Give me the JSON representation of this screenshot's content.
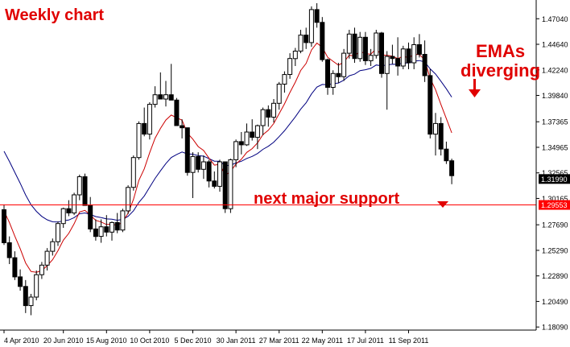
{
  "chart_data": {
    "type": "candlestick",
    "title": "Weekly chart",
    "annotations": {
      "ema_note": [
        "EMAs",
        "diverging"
      ],
      "support_note": "next major support"
    },
    "x_ticks": [
      "4 Apr 2010",
      "20 Jun 2010",
      "15 Aug 2010",
      "10 Oct 2010",
      "5 Dec 2010",
      "30 Jan 2011",
      "27 Mar 2011",
      "22 May 2011",
      "17 Jul 2011",
      "11 Sep 2011"
    ],
    "y_ticks": [
      "1.47040",
      "1.44640",
      "1.42240",
      "1.39840",
      "1.37365",
      "1.34965",
      "1.32565",
      "1.30165",
      "1.27690",
      "1.25290",
      "1.22890",
      "1.20490",
      "1.18090"
    ],
    "ylim": [
      1.178,
      1.488
    ],
    "current_price": "1.31990",
    "support_price": "1.29553",
    "grid": false,
    "colors": {
      "text_accent": "#e00000",
      "ema_fast": "#cc0000",
      "ema_slow": "#000080",
      "support_line": "#ff0000",
      "candle": "#000000"
    },
    "candles": [
      [
        1.291,
        1.296,
        1.258,
        1.26
      ],
      [
        1.26,
        1.266,
        1.24,
        1.246
      ],
      [
        1.246,
        1.252,
        1.225,
        1.228
      ],
      [
        1.228,
        1.235,
        1.215,
        1.219
      ],
      [
        1.219,
        1.225,
        1.194,
        1.201
      ],
      [
        1.201,
        1.212,
        1.192,
        1.209
      ],
      [
        1.209,
        1.234,
        1.206,
        1.23
      ],
      [
        1.23,
        1.242,
        1.226,
        1.239
      ],
      [
        1.239,
        1.255,
        1.234,
        1.252
      ],
      [
        1.252,
        1.264,
        1.248,
        1.261
      ],
      [
        1.261,
        1.28,
        1.257,
        1.278
      ],
      [
        1.278,
        1.293,
        1.274,
        1.292
      ],
      [
        1.292,
        1.3,
        1.285,
        1.288
      ],
      [
        1.288,
        1.307,
        1.286,
        1.305
      ],
      [
        1.305,
        1.324,
        1.3,
        1.322
      ],
      [
        1.322,
        1.325,
        1.295,
        1.295
      ],
      [
        1.295,
        1.303,
        1.27,
        1.273
      ],
      [
        1.273,
        1.282,
        1.262,
        1.266
      ],
      [
        1.266,
        1.282,
        1.26,
        1.275
      ],
      [
        1.275,
        1.286,
        1.266,
        1.27
      ],
      [
        1.27,
        1.28,
        1.262,
        1.279
      ],
      [
        1.279,
        1.288,
        1.269,
        1.272
      ],
      [
        1.272,
        1.292,
        1.27,
        1.29
      ],
      [
        1.29,
        1.314,
        1.287,
        1.312
      ],
      [
        1.312,
        1.342,
        1.309,
        1.34
      ],
      [
        1.34,
        1.374,
        1.338,
        1.372
      ],
      [
        1.372,
        1.387,
        1.36,
        1.362
      ],
      [
        1.362,
        1.392,
        1.357,
        1.39
      ],
      [
        1.39,
        1.407,
        1.387,
        1.399
      ],
      [
        1.399,
        1.42,
        1.395,
        1.395
      ],
      [
        1.395,
        1.412,
        1.388,
        1.399
      ],
      [
        1.399,
        1.428,
        1.394,
        1.394
      ],
      [
        1.394,
        1.396,
        1.37,
        1.37
      ],
      [
        1.37,
        1.376,
        1.358,
        1.368
      ],
      [
        1.368,
        1.368,
        1.323,
        1.326
      ],
      [
        1.326,
        1.345,
        1.302,
        1.341
      ],
      [
        1.341,
        1.345,
        1.326,
        1.329
      ],
      [
        1.329,
        1.342,
        1.32,
        1.336
      ],
      [
        1.336,
        1.338,
        1.312,
        1.318
      ],
      [
        1.318,
        1.327,
        1.311,
        1.313
      ],
      [
        1.313,
        1.338,
        1.308,
        1.336
      ],
      [
        1.336,
        1.336,
        1.288,
        1.292
      ],
      [
        1.292,
        1.339,
        1.288,
        1.338
      ],
      [
        1.338,
        1.357,
        1.331,
        1.355
      ],
      [
        1.355,
        1.364,
        1.343,
        1.352
      ],
      [
        1.352,
        1.372,
        1.351,
        1.364
      ],
      [
        1.364,
        1.376,
        1.356,
        1.359
      ],
      [
        1.359,
        1.371,
        1.348,
        1.37
      ],
      [
        1.37,
        1.387,
        1.361,
        1.385
      ],
      [
        1.385,
        1.389,
        1.369,
        1.378
      ],
      [
        1.378,
        1.395,
        1.373,
        1.391
      ],
      [
        1.391,
        1.411,
        1.385,
        1.409
      ],
      [
        1.409,
        1.421,
        1.401,
        1.418
      ],
      [
        1.418,
        1.438,
        1.414,
        1.433
      ],
      [
        1.433,
        1.443,
        1.426,
        1.44
      ],
      [
        1.44,
        1.46,
        1.438,
        1.455
      ],
      [
        1.455,
        1.462,
        1.442,
        1.448
      ],
      [
        1.448,
        1.482,
        1.444,
        1.479
      ],
      [
        1.479,
        1.485,
        1.462,
        1.467
      ],
      [
        1.467,
        1.472,
        1.43,
        1.432
      ],
      [
        1.432,
        1.433,
        1.399,
        1.406
      ],
      [
        1.406,
        1.422,
        1.399,
        1.419
      ],
      [
        1.419,
        1.429,
        1.41,
        1.416
      ],
      [
        1.416,
        1.442,
        1.412,
        1.438
      ],
      [
        1.438,
        1.46,
        1.433,
        1.456
      ],
      [
        1.456,
        1.462,
        1.429,
        1.433
      ],
      [
        1.433,
        1.458,
        1.43,
        1.453
      ],
      [
        1.453,
        1.458,
        1.427,
        1.431
      ],
      [
        1.431,
        1.442,
        1.426,
        1.436
      ],
      [
        1.436,
        1.46,
        1.433,
        1.457
      ],
      [
        1.457,
        1.458,
        1.415,
        1.419
      ],
      [
        1.419,
        1.44,
        1.385,
        1.435
      ],
      [
        1.435,
        1.446,
        1.428,
        1.433
      ],
      [
        1.433,
        1.453,
        1.417,
        1.426
      ],
      [
        1.426,
        1.445,
        1.423,
        1.442
      ],
      [
        1.442,
        1.448,
        1.423,
        1.429
      ],
      [
        1.429,
        1.453,
        1.423,
        1.446
      ],
      [
        1.446,
        1.456,
        1.434,
        1.437
      ],
      [
        1.437,
        1.45,
        1.411,
        1.417
      ],
      [
        1.417,
        1.423,
        1.358,
        1.362
      ],
      [
        1.362,
        1.382,
        1.342,
        1.372
      ],
      [
        1.372,
        1.378,
        1.342,
        1.348
      ],
      [
        1.348,
        1.355,
        1.334,
        1.337
      ],
      [
        1.337,
        1.339,
        1.315,
        1.323
      ]
    ]
  }
}
